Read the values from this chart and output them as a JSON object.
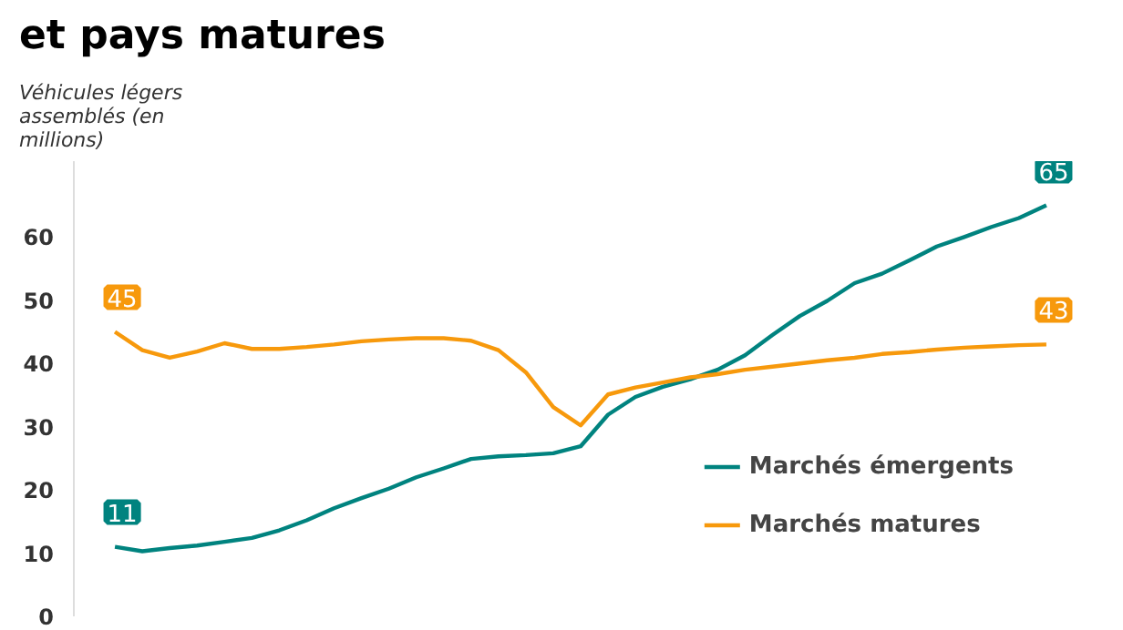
{
  "chart_data": {
    "type": "line",
    "title": "et pays matures",
    "ylabel": "Véhicules légers assemblés (en millions)",
    "categories": [
      null,
      null,
      null,
      null,
      null,
      null,
      null,
      null,
      null,
      null,
      null,
      null,
      null,
      null,
      null,
      null,
      null,
      null,
      null,
      null,
      null,
      null,
      null,
      null,
      null,
      null,
      null,
      null,
      null,
      null,
      null,
      null,
      null,
      null,
      null
    ],
    "series": [
      {
        "name": "Marchés émergents",
        "color": "#00837f",
        "values": [
          11,
          10.3,
          10.8,
          11.2,
          11.8,
          12.4,
          13.6,
          15.2,
          17.1,
          18.7,
          20.2,
          22.0,
          23.4,
          24.9,
          25.3,
          25.5,
          25.8,
          26.9,
          31.9,
          34.7,
          36.3,
          37.5,
          39.0,
          41.3,
          44.5,
          47.5,
          49.9,
          52.7,
          54.2,
          56.3,
          58.5,
          60.0,
          61.6,
          63.0,
          65
        ],
        "value_labels": [
          "11",
          null,
          null,
          null,
          null,
          null,
          null,
          null,
          null,
          null,
          null,
          null,
          null,
          null,
          null,
          null,
          null,
          null,
          null,
          null,
          null,
          null,
          null,
          null,
          null,
          null,
          null,
          null,
          null,
          null,
          null,
          null,
          null,
          null,
          "65"
        ]
      },
      {
        "name": "Marchés matures",
        "color": "#f7990c",
        "values": [
          45,
          42.1,
          40.9,
          41.9,
          43.2,
          42.3,
          42.3,
          42.6,
          43.0,
          43.5,
          43.8,
          44.0,
          44.0,
          43.6,
          42.1,
          38.6,
          33.1,
          30.2,
          35.1,
          36.2,
          37.0,
          37.8,
          38.3,
          39.0,
          39.5,
          40.0,
          40.5,
          40.9,
          41.5,
          41.8,
          42.2,
          42.5,
          42.7,
          42.9,
          43
        ],
        "value_labels": [
          "45",
          null,
          null,
          null,
          null,
          null,
          null,
          null,
          null,
          null,
          null,
          null,
          null,
          null,
          null,
          null,
          null,
          null,
          null,
          null,
          null,
          null,
          null,
          null,
          null,
          null,
          null,
          null,
          null,
          null,
          null,
          null,
          null,
          null,
          "43"
        ]
      }
    ],
    "ylim": [
      0,
      72
    ],
    "yticks": [
      0,
      10,
      20,
      30,
      40,
      50,
      60
    ],
    "grid": false,
    "legend": "bottom right",
    "tick_labels": "y",
    "marker": "none",
    "line_style": "solid"
  }
}
